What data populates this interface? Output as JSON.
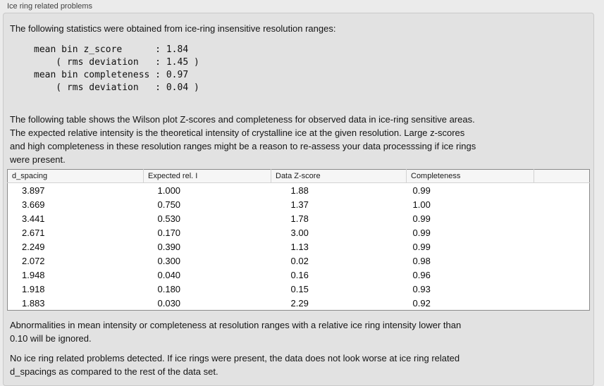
{
  "panel": {
    "title": "Ice ring related problems"
  },
  "stats": {
    "intro": "The following statistics were obtained from ice-ring insensitive resolution ranges:",
    "block": "mean bin z_score      : 1.84\n    ( rms deviation   : 1.45 )\nmean bin completeness : 0.97\n    ( rms deviation   : 0.04 )",
    "values": {
      "mean_bin_z_score": "1.84",
      "z_score_rms_deviation": "1.45",
      "mean_bin_completeness": "0.97",
      "completeness_rms_deviation": "0.04"
    }
  },
  "table_section": {
    "description": "The following table shows the Wilson plot Z-scores and completeness for observed data in ice-ring sensitive areas.\nThe expected relative intensity is the theoretical intensity of crystalline ice at the given resolution. Large z-scores\nand high completeness in these resolution ranges might be a reason to re-assess your data processsing if ice rings\nwere present.",
    "table": {
      "columns": [
        "d_spacing",
        "Expected rel. I",
        "Data Z-score",
        "Completeness",
        ""
      ],
      "rows": [
        [
          "3.897",
          "1.000",
          "1.88",
          "0.99"
        ],
        [
          "3.669",
          "0.750",
          "1.37",
          "1.00"
        ],
        [
          "3.441",
          "0.530",
          "1.78",
          "0.99"
        ],
        [
          "2.671",
          "0.170",
          "3.00",
          "0.99"
        ],
        [
          "2.249",
          "0.390",
          "1.13",
          "0.99"
        ],
        [
          "2.072",
          "0.300",
          "0.02",
          "0.98"
        ],
        [
          "1.948",
          "0.040",
          "0.16",
          "0.96"
        ],
        [
          "1.918",
          "0.180",
          "0.15",
          "0.93"
        ],
        [
          "1.883",
          "0.030",
          "2.29",
          "0.92"
        ]
      ]
    }
  },
  "notes": {
    "ignore_threshold": "Abnormalities in mean intensity or completeness at resolution ranges with a relative ice ring intensity lower than\n0.10 will be ignored.",
    "conclusion": "No ice ring related problems detected. If ice rings were present, the data does not look worse at ice ring related\nd_spacings as compared to the rest of the data set."
  },
  "colors": {
    "page_bg": "#ebebeb",
    "panel_bg": "#e2e2e2",
    "panel_border": "#c9c9c9",
    "table_bg": "#ffffff",
    "table_border": "#8a8a8a",
    "table_header_bg": "#f6f6f6",
    "table_header_line": "#d2d2d2",
    "body_text": "#141414",
    "label_text": "#404040"
  }
}
